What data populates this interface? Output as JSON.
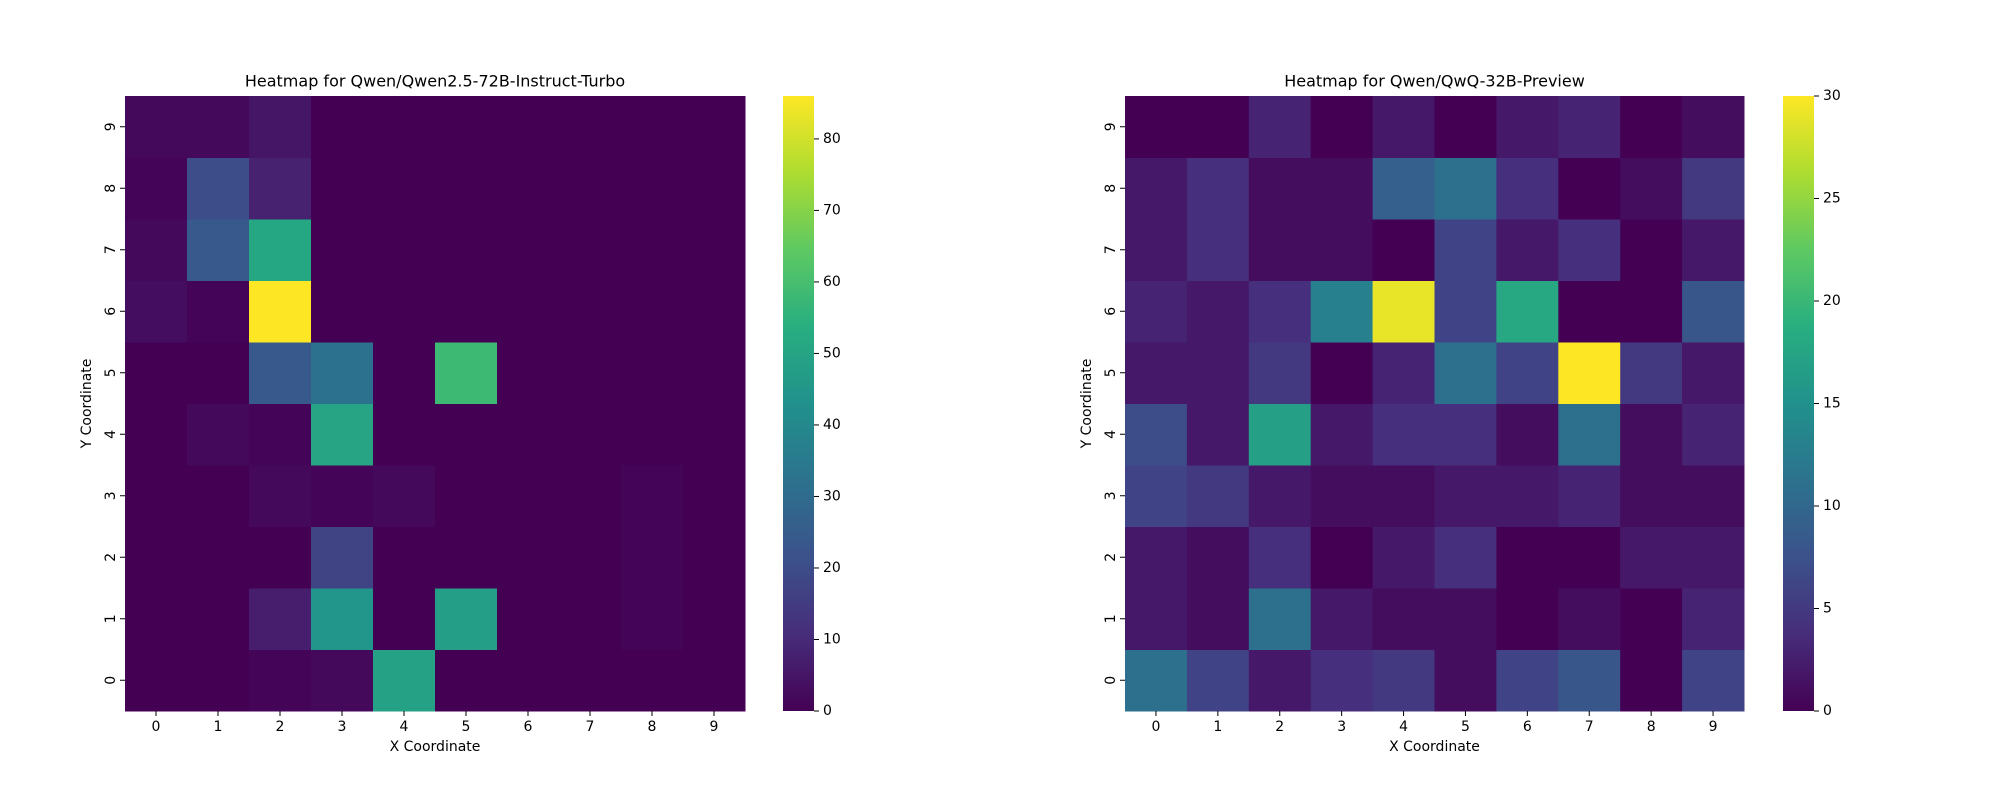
{
  "chart_data": [
    {
      "type": "heatmap",
      "title": "Heatmap for Qwen/Qwen2.5-72B-Instruct-Turbo",
      "x_label": "X Coordinate",
      "y_label": "Y Coordinate",
      "x": [
        0,
        1,
        2,
        3,
        4,
        5,
        6,
        7,
        8,
        9
      ],
      "y": [
        0,
        1,
        2,
        3,
        4,
        5,
        6,
        7,
        8,
        9
      ],
      "values": [
        [
          0,
          0,
          1,
          2,
          49,
          0,
          0,
          0,
          0,
          0
        ],
        [
          0,
          0,
          7,
          45,
          0,
          48,
          0,
          0,
          1,
          0
        ],
        [
          0,
          0,
          0,
          17,
          0,
          0,
          0,
          0,
          1,
          0
        ],
        [
          0,
          0,
          2,
          1,
          2,
          0,
          0,
          0,
          1,
          0
        ],
        [
          0,
          2,
          1,
          50,
          0,
          0,
          0,
          0,
          0,
          0
        ],
        [
          0,
          0,
          24,
          32,
          0,
          58,
          0,
          0,
          0,
          0
        ],
        [
          3,
          1,
          86,
          0,
          0,
          0,
          0,
          0,
          0,
          0
        ],
        [
          2,
          24,
          51,
          0,
          0,
          0,
          0,
          0,
          0,
          0
        ],
        [
          1,
          20,
          8,
          0,
          0,
          0,
          0,
          0,
          0,
          0
        ],
        [
          2,
          2,
          5,
          0,
          0,
          0,
          0,
          0,
          0,
          0
        ]
      ],
      "zlim": [
        0,
        86
      ],
      "zticks": [
        0,
        10,
        20,
        30,
        40,
        50,
        60,
        70,
        80
      ],
      "colormap": "viridis"
    },
    {
      "type": "heatmap",
      "title": "Heatmap for Qwen/QwQ-32B-Preview",
      "x_label": "X Coordinate",
      "y_label": "Y Coordinate",
      "x": [
        0,
        1,
        2,
        3,
        4,
        5,
        6,
        7,
        8,
        9
      ],
      "y": [
        0,
        1,
        2,
        3,
        4,
        5,
        6,
        7,
        8,
        9
      ],
      "values": [
        [
          11,
          6,
          2,
          4,
          5,
          1,
          6,
          8,
          0,
          6
        ],
        [
          2,
          1,
          11,
          2,
          1,
          1,
          0,
          1,
          0,
          3
        ],
        [
          2,
          1,
          4,
          0,
          2,
          4,
          0,
          0,
          2,
          2
        ],
        [
          6,
          5,
          2,
          1,
          1,
          2,
          2,
          3,
          1,
          1
        ],
        [
          7,
          2,
          17,
          2,
          4,
          4,
          1,
          11,
          1,
          3
        ],
        [
          2,
          2,
          5,
          0,
          3,
          11,
          6,
          30,
          5,
          2
        ],
        [
          3,
          2,
          4,
          13,
          29,
          6,
          18,
          0,
          0,
          8
        ],
        [
          2,
          4,
          1,
          1,
          0,
          6,
          2,
          4,
          0,
          2
        ],
        [
          2,
          4,
          1,
          1,
          9,
          11,
          4,
          0,
          1,
          5
        ],
        [
          0,
          0,
          3,
          0,
          2,
          0,
          2,
          3,
          0,
          1
        ]
      ],
      "zlim": [
        0,
        30
      ],
      "zticks": [
        0,
        5,
        10,
        15,
        20,
        25,
        30
      ],
      "colormap": "viridis"
    }
  ]
}
